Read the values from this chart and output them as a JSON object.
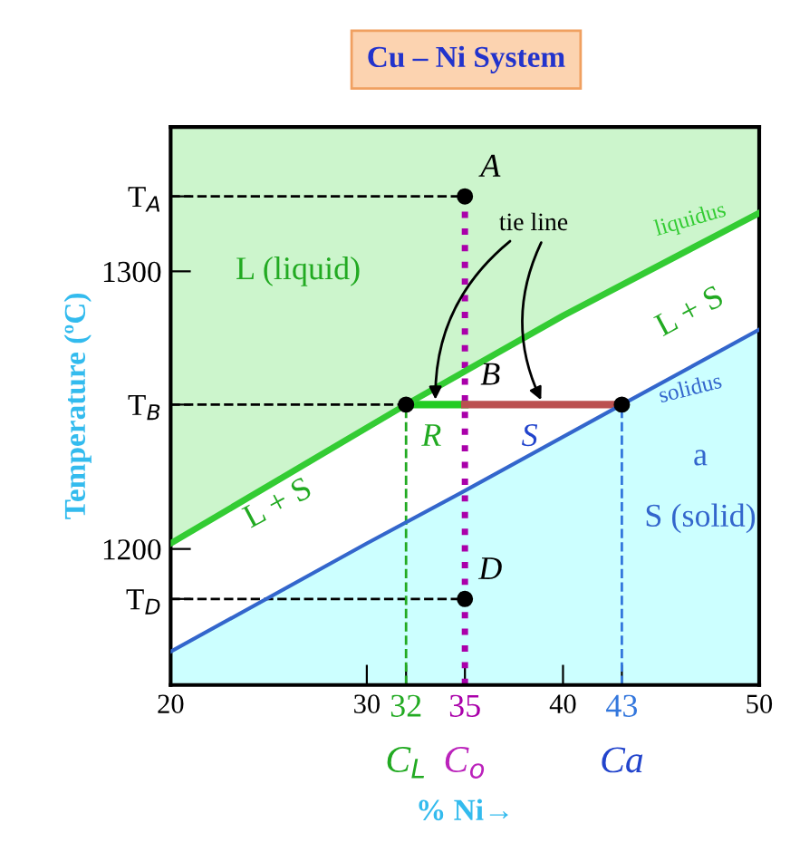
{
  "chart_data": {
    "type": "line",
    "title": "Cu – Ni System",
    "xlabel": "% Ni→",
    "ylabel": "Temperature (ºC)",
    "xlim": [
      20,
      50
    ],
    "ylim": [
      1151,
      1352
    ],
    "xticks": [
      20,
      30,
      32,
      35,
      40,
      43,
      50
    ],
    "yticks": [
      {
        "value": 1182,
        "label": "T$_{D}$"
      },
      1200,
      {
        "value": 1252,
        "label": "T$_{B}$"
      },
      1300,
      {
        "value": 1327,
        "label": "T$_{A}$"
      }
    ],
    "grid": false,
    "legend": false,
    "series": [
      {
        "name": "liquidus",
        "color": "#33cc33",
        "x": [
          20,
          26,
          32,
          40,
          50
        ],
        "values": [
          1202,
          1227,
          1252,
          1284,
          1321
        ]
      },
      {
        "name": "solidus",
        "type": "area",
        "color": "#3366cc",
        "x": [
          20,
          30,
          35,
          43,
          50
        ],
        "values": [
          1163,
          1202,
          1221,
          1252,
          1279
        ]
      },
      {
        "color": "#000000",
        "x": [
          20,
          35
        ],
        "values": [
          1327,
          1327
        ],
        "line_style": "dashed"
      },
      {
        "color": "#000000",
        "x": [
          20,
          32
        ],
        "values": [
          1252,
          1252
        ],
        "line_style": "dashed"
      },
      {
        "color": "#000000",
        "x": [
          20,
          35
        ],
        "values": [
          1182,
          1182
        ],
        "line_style": "dashed"
      },
      {
        "color": "#22aa22",
        "x": [
          32,
          32
        ],
        "values": [
          1151,
          1252
        ],
        "line_style": "dashed"
      },
      {
        "color": "#3377dd",
        "x": [
          43,
          43
        ],
        "values": [
          1151,
          1252
        ],
        "line_style": "dashed"
      },
      {
        "color": "#aa00aa",
        "x": [
          35,
          35
        ],
        "values": [
          1151,
          1327
        ],
        "line_style": "dotted"
      },
      {
        "color": "#22cc22",
        "x": [
          32,
          35
        ],
        "values": [
          1252,
          1252
        ]
      },
      {
        "color": "#bb5050",
        "x": [
          35,
          43
        ],
        "values": [
          1252,
          1252
        ]
      },
      {
        "type": "scatter",
        "color": "#000000",
        "marker": "circle",
        "x": [
          35,
          32,
          43,
          35
        ],
        "values": [
          1327,
          1252,
          1252,
          1182
        ]
      }
    ],
    "annotations": [
      "A",
      "B",
      "D",
      "R",
      "S",
      "L (liquid)",
      "L + S",
      "L + S",
      "a",
      "S (solid)",
      {
        "text": "tie line",
        "x": 39,
        "y": 1252
      },
      "C$_{L}$",
      "C$_{o}$",
      "Ca"
    ]
  }
}
